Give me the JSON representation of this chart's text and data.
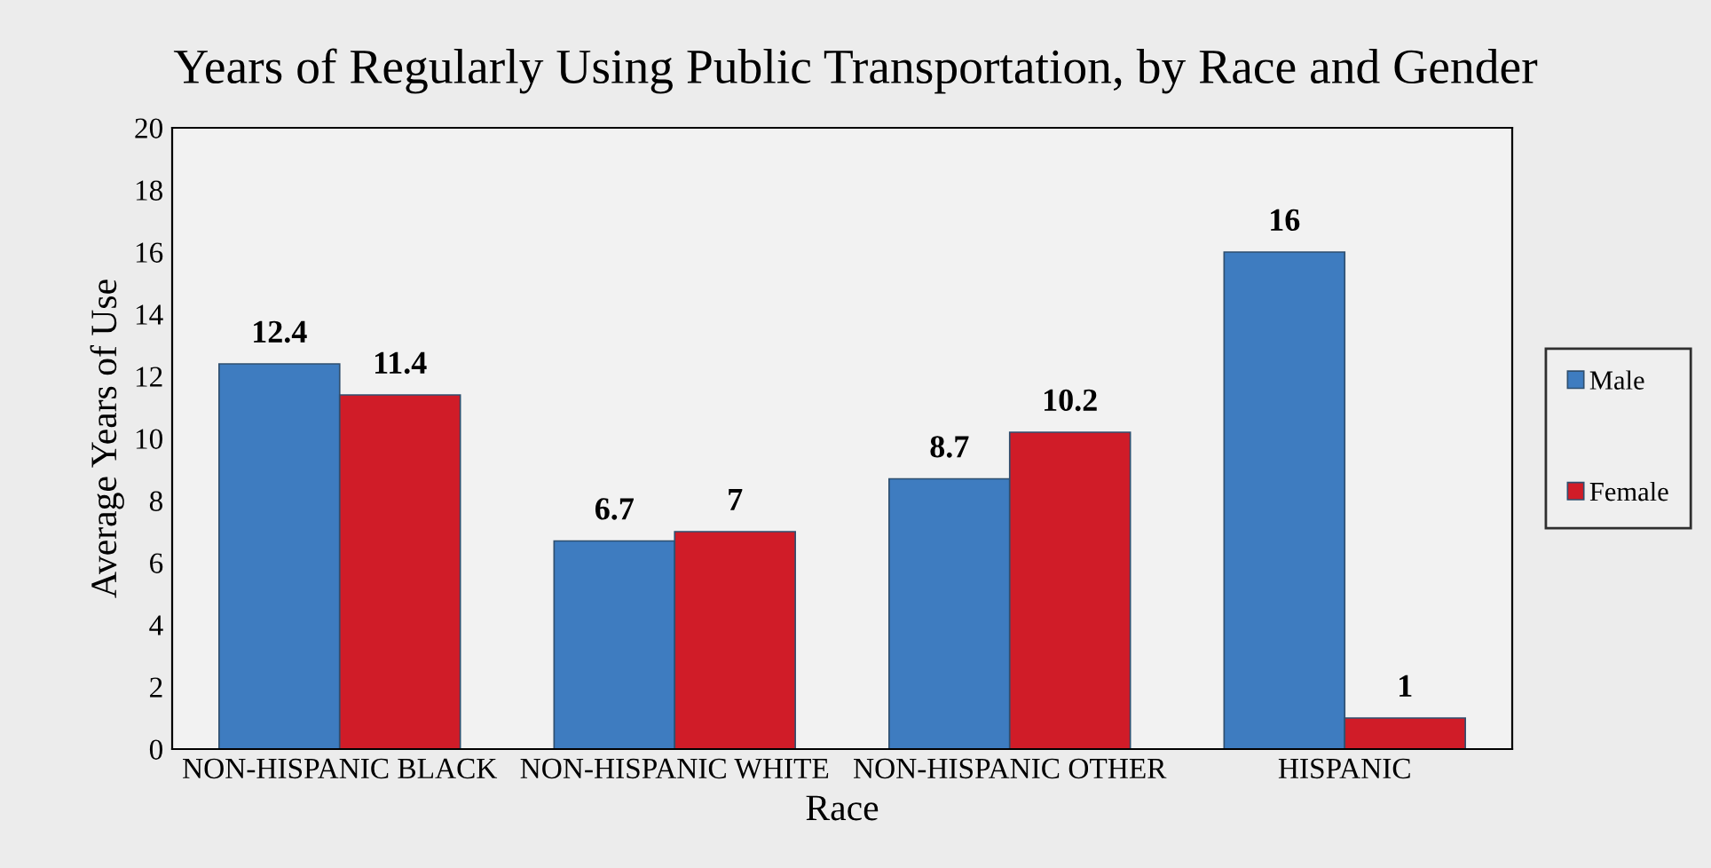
{
  "chart_data": {
    "type": "bar",
    "title": "Years of Regularly Using Public Transportation, by Race and Gender",
    "xlabel": "Race",
    "ylabel": "Average Years of Use",
    "categories": [
      "NON-HISPANIC BLACK",
      "NON-HISPANIC WHITE",
      "NON-HISPANIC OTHER",
      "HISPANIC"
    ],
    "series": [
      {
        "name": "Male",
        "color": "#3e7cc0",
        "values": [
          12.4,
          6.7,
          8.7,
          16
        ]
      },
      {
        "name": "Female",
        "color": "#d01c28",
        "values": [
          11.4,
          7,
          10.2,
          1
        ]
      }
    ],
    "ylim": [
      0,
      20
    ],
    "yticks": [
      0,
      2,
      4,
      6,
      8,
      10,
      12,
      14,
      16,
      18,
      20
    ],
    "data_labels": true,
    "legend": "right",
    "grid": false
  }
}
